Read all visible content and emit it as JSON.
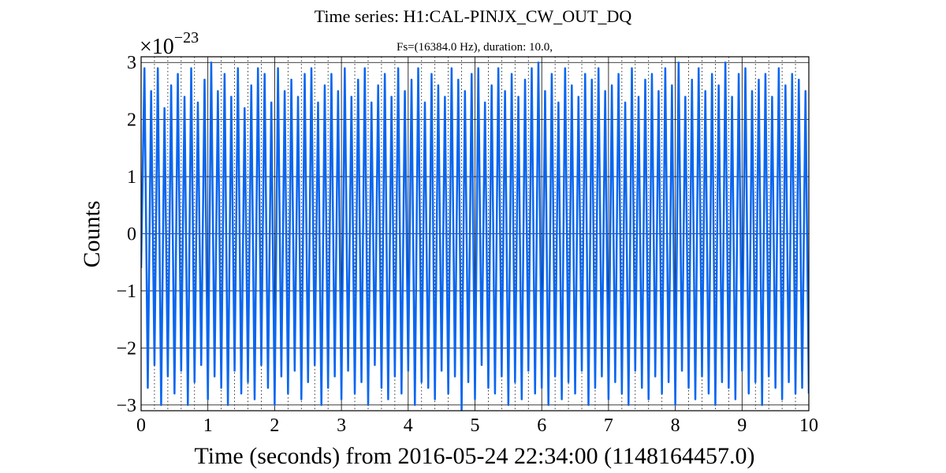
{
  "chart_data": {
    "type": "line",
    "title": "Time series:  H1:CAL-PINJX_CW_OUT_DQ",
    "subtitle": "Fs=(16384.0 Hz), duration: 10.0,",
    "x_label": "Time (seconds) from 2016-05-24 22:34:00 (1148164457.0)",
    "y_label": "Counts",
    "y_offset_base": "×10",
    "y_offset_exponent": "−23",
    "xlim": [
      0,
      10
    ],
    "ylim": [
      -3.1,
      3.1
    ],
    "xticks": [
      0,
      1,
      2,
      3,
      4,
      5,
      6,
      7,
      8,
      9,
      10
    ],
    "xminorticks": [
      0.2,
      0.4,
      0.6,
      0.8,
      1.2,
      1.4,
      1.6,
      1.8,
      2.2,
      2.4,
      2.6,
      2.8,
      3.2,
      3.4,
      3.6,
      3.8,
      4.2,
      4.4,
      4.6,
      4.8,
      5.2,
      5.4,
      5.6,
      5.8,
      6.2,
      6.4,
      6.6,
      6.8,
      7.2,
      7.4,
      7.6,
      7.8,
      8.2,
      8.4,
      8.6,
      8.8,
      9.2,
      9.4,
      9.6,
      9.8
    ],
    "yticks": [
      {
        "value": -3,
        "label": "−3"
      },
      {
        "value": -2,
        "label": "−2"
      },
      {
        "value": -1,
        "label": "−1"
      },
      0,
      1,
      2,
      3
    ],
    "grid": true,
    "color": "#0a66f0",
    "x": [
      0,
      0.05,
      0.1,
      0.15,
      0.2,
      0.25,
      0.3,
      0.35,
      0.4,
      0.45,
      0.5,
      0.55,
      0.6,
      0.65,
      0.7,
      0.75,
      0.8,
      0.85,
      0.9,
      0.95,
      1,
      1.05,
      1.1,
      1.15,
      1.2,
      1.25,
      1.3,
      1.35,
      1.4,
      1.45,
      1.5,
      1.55,
      1.6,
      1.65,
      1.7,
      1.75,
      1.8,
      1.85,
      1.9,
      1.95,
      2,
      2.05,
      2.1,
      2.15,
      2.2,
      2.25,
      2.3,
      2.35,
      2.4,
      2.45,
      2.5,
      2.55,
      2.6,
      2.65,
      2.7,
      2.75,
      2.8,
      2.85,
      2.9,
      2.95,
      3,
      3.05,
      3.1,
      3.15,
      3.2,
      3.25,
      3.3,
      3.35,
      3.4,
      3.45,
      3.5,
      3.55,
      3.6,
      3.65,
      3.7,
      3.75,
      3.8,
      3.85,
      3.9,
      3.95,
      4,
      4.05,
      4.1,
      4.15,
      4.2,
      4.25,
      4.3,
      4.35,
      4.4,
      4.45,
      4.5,
      4.55,
      4.6,
      4.65,
      4.7,
      4.75,
      4.8,
      4.85,
      4.9,
      4.95,
      5,
      5.05,
      5.1,
      5.15,
      5.2,
      5.25,
      5.3,
      5.35,
      5.4,
      5.45,
      5.5,
      5.55,
      5.6,
      5.65,
      5.7,
      5.75,
      5.8,
      5.85,
      5.9,
      5.95,
      6,
      6.05,
      6.1,
      6.15,
      6.2,
      6.25,
      6.3,
      6.35,
      6.4,
      6.45,
      6.5,
      6.55,
      6.6,
      6.65,
      6.7,
      6.75,
      6.8,
      6.85,
      6.9,
      6.95,
      7,
      7.05,
      7.1,
      7.15,
      7.2,
      7.25,
      7.3,
      7.35,
      7.4,
      7.45,
      7.5,
      7.55,
      7.6,
      7.65,
      7.7,
      7.75,
      7.8,
      7.85,
      7.9,
      7.95,
      8,
      8.05,
      8.1,
      8.15,
      8.2,
      8.25,
      8.3,
      8.35,
      8.4,
      8.45,
      8.5,
      8.55,
      8.6,
      8.65,
      8.7,
      8.75,
      8.8,
      8.85,
      8.9,
      8.95,
      9,
      9.05,
      9.1,
      9.15,
      9.2,
      9.25,
      9.3,
      9.35,
      9.4,
      9.45,
      9.5,
      9.55,
      9.6,
      9.65,
      9.7,
      9.75,
      9.8,
      9.85,
      9.9,
      9.95,
      10
    ],
    "values": [
      -0.6,
      2.9,
      -2.7,
      2.5,
      -2.3,
      2.9,
      -3.0,
      2.2,
      -2.5,
      2.6,
      -2.8,
      2.8,
      -2.4,
      2.4,
      -3.0,
      2.9,
      -2.6,
      2.3,
      -2.3,
      2.7,
      -2.9,
      3.0,
      -2.5,
      2.5,
      -2.7,
      2.8,
      -3.0,
      2.4,
      -2.4,
      2.9,
      -2.8,
      2.2,
      -2.6,
      2.6,
      -2.9,
      2.9,
      -2.3,
      2.8,
      -2.7,
      2.3,
      -3.0,
      2.9,
      -2.5,
      2.5,
      -2.8,
      2.7,
      -2.4,
      2.4,
      -2.9,
      2.8,
      -2.6,
      2.9,
      -2.3,
      2.3,
      -3.0,
      2.6,
      -2.7,
      2.8,
      -2.5,
      2.5,
      -2.9,
      2.9,
      -2.4,
      2.4,
      -2.8,
      2.7,
      -2.6,
      2.9,
      -3.0,
      2.3,
      -2.3,
      2.6,
      -2.7,
      2.8,
      -2.9,
      2.4,
      -2.5,
      2.9,
      -2.8,
      2.5,
      -2.4,
      2.7,
      -3.0,
      2.9,
      -2.6,
      2.3,
      -2.7,
      2.8,
      -2.9,
      2.6,
      -2.4,
      2.4,
      -2.8,
      2.9,
      -2.5,
      2.7,
      -3.1,
      2.5,
      -2.6,
      2.8,
      -2.9,
      2.9,
      -2.3,
      2.3,
      -2.7,
      2.6,
      -2.8,
      2.9,
      -2.5,
      2.5,
      -3.0,
      2.8,
      -2.6,
      2.4,
      -2.9,
      2.7,
      -2.4,
      2.9,
      -2.8,
      3.0,
      -2.7,
      2.5,
      -3.0,
      2.8,
      -2.5,
      2.3,
      -2.9,
      2.9,
      -2.6,
      2.6,
      -2.8,
      2.4,
      -2.4,
      2.8,
      -3.0,
      2.7,
      -2.7,
      2.9,
      -2.5,
      2.5,
      -2.9,
      2.6,
      -2.6,
      2.8,
      -2.8,
      2.3,
      -3.0,
      2.9,
      -2.4,
      2.4,
      -2.7,
      2.7,
      -2.9,
      2.8,
      -2.5,
      2.5,
      -2.8,
      2.9,
      -2.6,
      2.6,
      -3.0,
      3.0,
      -2.4,
      2.4,
      -2.7,
      2.7,
      -2.9,
      2.9,
      -2.5,
      2.5,
      -2.8,
      2.8,
      -3.0,
      2.6,
      -2.6,
      3.0,
      -2.7,
      2.4,
      -2.9,
      2.8,
      -2.4,
      2.9,
      -2.8,
      2.5,
      -2.6,
      2.7,
      -3.0,
      2.8,
      -2.5,
      2.4,
      -2.7,
      2.9,
      -2.9,
      2.6,
      -2.6,
      2.8,
      -2.8,
      2.7,
      -2.7,
      2.5,
      -2.8
    ]
  }
}
